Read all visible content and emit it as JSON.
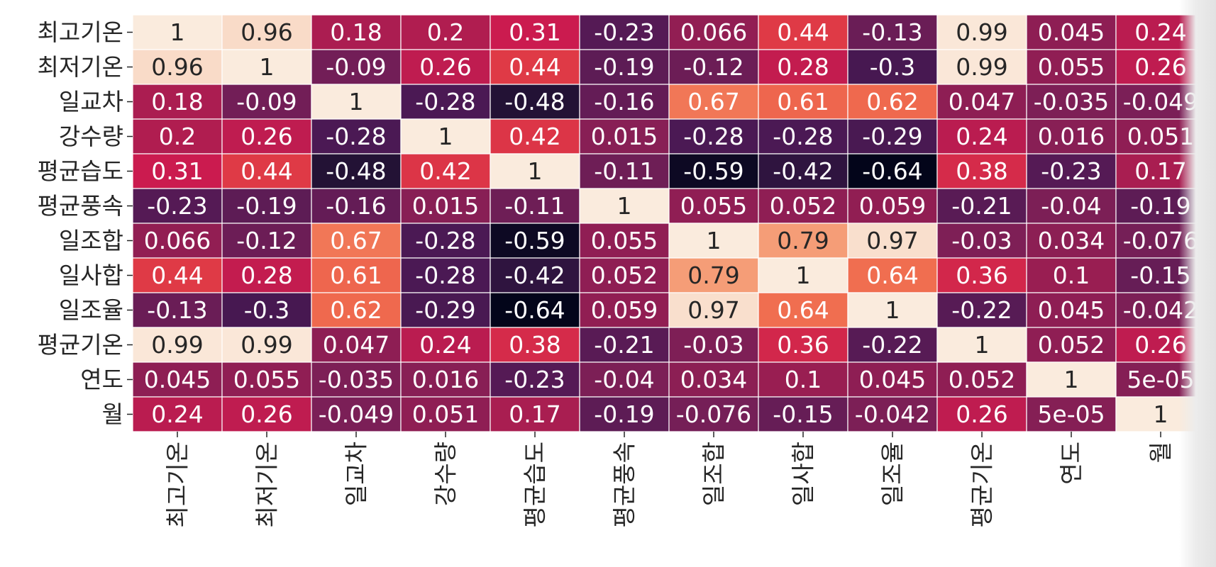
{
  "chart_data": {
    "type": "heatmap",
    "title": "",
    "xlabel": "",
    "ylabel": "",
    "colormap": "rocket",
    "vmin": -0.64,
    "vmax": 1,
    "gridlines": true,
    "legend": "none",
    "row_labels": [
      "최고기온",
      "최저기온",
      "일교차",
      "강수량",
      "평균습도",
      "평균풍속",
      "일조합",
      "일사합",
      "일조율",
      "평균기온",
      "연도",
      "월"
    ],
    "col_labels": [
      "최고기온",
      "최저기온",
      "일교차",
      "강수량",
      "평균습도",
      "평균풍속",
      "일조합",
      "일사합",
      "일조율",
      "평균기온",
      "연도",
      "월"
    ],
    "values": [
      [
        1,
        0.96,
        0.18,
        0.2,
        0.31,
        -0.23,
        0.066,
        0.44,
        -0.13,
        0.99,
        0.045,
        0.24
      ],
      [
        0.96,
        1,
        -0.09,
        0.26,
        0.44,
        -0.19,
        -0.12,
        0.28,
        -0.3,
        0.99,
        0.055,
        0.26
      ],
      [
        0.18,
        -0.09,
        1,
        -0.28,
        -0.48,
        -0.16,
        0.67,
        0.61,
        0.62,
        0.047,
        -0.035,
        -0.049
      ],
      [
        0.2,
        0.26,
        -0.28,
        1,
        0.42,
        0.015,
        -0.28,
        -0.28,
        -0.29,
        0.24,
        0.016,
        0.051
      ],
      [
        0.31,
        0.44,
        -0.48,
        0.42,
        1,
        -0.11,
        -0.59,
        -0.42,
        -0.64,
        0.38,
        -0.23,
        0.17
      ],
      [
        -0.23,
        -0.19,
        -0.16,
        0.015,
        -0.11,
        1,
        0.055,
        0.052,
        0.059,
        -0.21,
        -0.04,
        -0.19
      ],
      [
        0.066,
        -0.12,
        0.67,
        -0.28,
        -0.59,
        0.055,
        1,
        0.79,
        0.97,
        -0.03,
        0.034,
        -0.076
      ],
      [
        0.44,
        0.28,
        0.61,
        -0.28,
        -0.42,
        0.052,
        0.79,
        1,
        0.64,
        0.36,
        0.1,
        -0.15
      ],
      [
        -0.13,
        -0.3,
        0.62,
        -0.29,
        -0.64,
        0.059,
        0.97,
        0.64,
        1,
        -0.22,
        0.045,
        -0.042
      ],
      [
        0.99,
        0.99,
        0.047,
        0.24,
        0.38,
        -0.21,
        -0.03,
        0.36,
        -0.22,
        1,
        0.052,
        0.26
      ],
      [
        0.045,
        0.055,
        -0.035,
        0.016,
        -0.23,
        -0.04,
        0.034,
        0.1,
        0.045,
        0.052,
        1,
        5e-05
      ],
      [
        0.24,
        0.26,
        -0.049,
        0.051,
        0.17,
        -0.19,
        -0.076,
        -0.15,
        -0.042,
        0.26,
        5e-05,
        1
      ]
    ],
    "cell_labels": [
      [
        "1",
        "0.96",
        "0.18",
        "0.2",
        "0.31",
        "-0.23",
        "0.066",
        "0.44",
        "-0.13",
        "0.99",
        "0.045",
        "0.24"
      ],
      [
        "0.96",
        "1",
        "-0.09",
        "0.26",
        "0.44",
        "-0.19",
        "-0.12",
        "0.28",
        "-0.3",
        "0.99",
        "0.055",
        "0.26"
      ],
      [
        "0.18",
        "-0.09",
        "1",
        "-0.28",
        "-0.48",
        "-0.16",
        "0.67",
        "0.61",
        "0.62",
        "0.047",
        "-0.035",
        "-0.049"
      ],
      [
        "0.2",
        "0.26",
        "-0.28",
        "1",
        "0.42",
        "0.015",
        "-0.28",
        "-0.28",
        "-0.29",
        "0.24",
        "0.016",
        "0.051"
      ],
      [
        "0.31",
        "0.44",
        "-0.48",
        "0.42",
        "1",
        "-0.11",
        "-0.59",
        "-0.42",
        "-0.64",
        "0.38",
        "-0.23",
        "0.17"
      ],
      [
        "-0.23",
        "-0.19",
        "-0.16",
        "0.015",
        "-0.11",
        "1",
        "0.055",
        "0.052",
        "0.059",
        "-0.21",
        "-0.04",
        "-0.19"
      ],
      [
        "0.066",
        "-0.12",
        "0.67",
        "-0.28",
        "-0.59",
        "0.055",
        "1",
        "0.79",
        "0.97",
        "-0.03",
        "0.034",
        "-0.076"
      ],
      [
        "0.44",
        "0.28",
        "0.61",
        "-0.28",
        "-0.42",
        "0.052",
        "0.79",
        "1",
        "0.64",
        "0.36",
        "0.1",
        "-0.15"
      ],
      [
        "-0.13",
        "-0.3",
        "0.62",
        "-0.29",
        "-0.64",
        "0.059",
        "0.97",
        "0.64",
        "1",
        "-0.22",
        "0.045",
        "-0.042"
      ],
      [
        "0.99",
        "0.99",
        "0.047",
        "0.24",
        "0.38",
        "-0.21",
        "-0.03",
        "0.36",
        "-0.22",
        "1",
        "0.052",
        "0.26"
      ],
      [
        "0.045",
        "0.055",
        "-0.035",
        "0.016",
        "-0.23",
        "-0.04",
        "0.034",
        "0.1",
        "0.045",
        "0.052",
        "1",
        "5e-05"
      ],
      [
        "0.24",
        "0.26",
        "-0.049",
        "0.051",
        "0.17",
        "-0.19",
        "-0.076",
        "-0.15",
        "-0.042",
        "0.26",
        "5e-05",
        "1"
      ]
    ]
  }
}
